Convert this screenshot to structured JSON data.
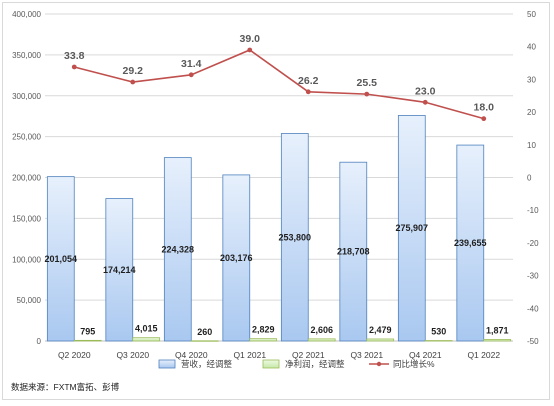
{
  "chart_data": {
    "type": "bar",
    "categories": [
      "Q2 2020",
      "Q3 2020",
      "Q4 2020",
      "Q1 2021",
      "Q2 2021",
      "Q3 2021",
      "Q4 2021",
      "Q1 2022"
    ],
    "series": [
      {
        "name": "营收，经调整",
        "type": "bar",
        "axis": "left",
        "values": [
          201054,
          174214,
          224328,
          203176,
          253800,
          218708,
          275907,
          239655
        ],
        "labels": [
          "201,054",
          "174,214",
          "224,328",
          "203,176",
          "253,800",
          "218,708",
          "275,907",
          "239,655"
        ],
        "color": "#a9c8f0"
      },
      {
        "name": "净利润，经调整",
        "type": "bar",
        "axis": "left",
        "values": [
          795,
          4015,
          260,
          2829,
          2606,
          2479,
          530,
          1871
        ],
        "labels": [
          "795",
          "4,015",
          "260",
          "2,829",
          "2,606",
          "2,479",
          "530",
          "1,871"
        ],
        "color": "#c6e8a6"
      },
      {
        "name": "同比增长%",
        "type": "line",
        "axis": "right",
        "values": [
          33.8,
          29.2,
          31.4,
          39.0,
          26.2,
          25.5,
          23.0,
          18.0
        ],
        "labels": [
          "33.8",
          "29.2",
          "31.4",
          "39.0",
          "26.2",
          "25.5",
          "23.0",
          "18.0"
        ],
        "color": "#c0504d"
      }
    ],
    "left_axis": {
      "ylim": [
        0,
        400000
      ],
      "ticks": [
        0,
        50000,
        100000,
        150000,
        200000,
        250000,
        300000,
        350000,
        400000
      ],
      "tick_labels": [
        "0",
        "50,000",
        "100,000",
        "150,000",
        "200,000",
        "250,000",
        "300,000",
        "350,000",
        "400,000"
      ]
    },
    "right_axis": {
      "ylim": [
        -50,
        50
      ],
      "ticks": [
        -50,
        -40,
        -30,
        -20,
        -10,
        0,
        10,
        20,
        30,
        40,
        50
      ],
      "tick_labels": [
        "-50",
        "-40",
        "-30",
        "-20",
        "-10",
        "0",
        "10",
        "20",
        "30",
        "40",
        "50"
      ]
    },
    "grid": true,
    "legend": "bottom-center",
    "source": "数据来源：FXTM富拓、彭博"
  }
}
